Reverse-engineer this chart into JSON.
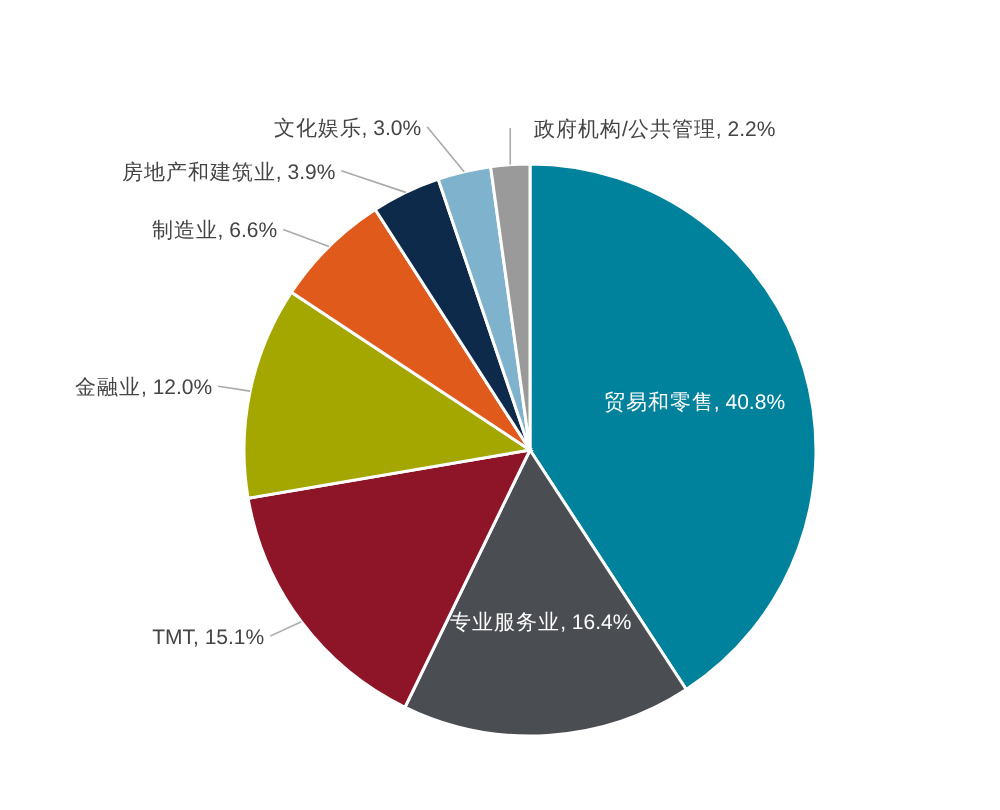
{
  "chart_data": {
    "type": "pie",
    "categories": [
      "贸易和零售",
      "专业服务业",
      "TMT",
      "金融业",
      "制造业",
      "房地产和建筑业",
      "文化娱乐",
      "政府机构/公共管理"
    ],
    "values": [
      40.8,
      16.4,
      15.1,
      12.0,
      6.6,
      3.9,
      3.0,
      2.2
    ],
    "value_labels": [
      "40.8%",
      "16.4%",
      "15.1%",
      "12.0%",
      "6.6%",
      "3.9%",
      "3.0%",
      "2.2%"
    ],
    "colors": [
      "#00819c",
      "#4a4d51",
      "#8e1528",
      "#a3a700",
      "#e05a1c",
      "#0d2a4a",
      "#7fb2cc",
      "#9a9a9a"
    ]
  }
}
